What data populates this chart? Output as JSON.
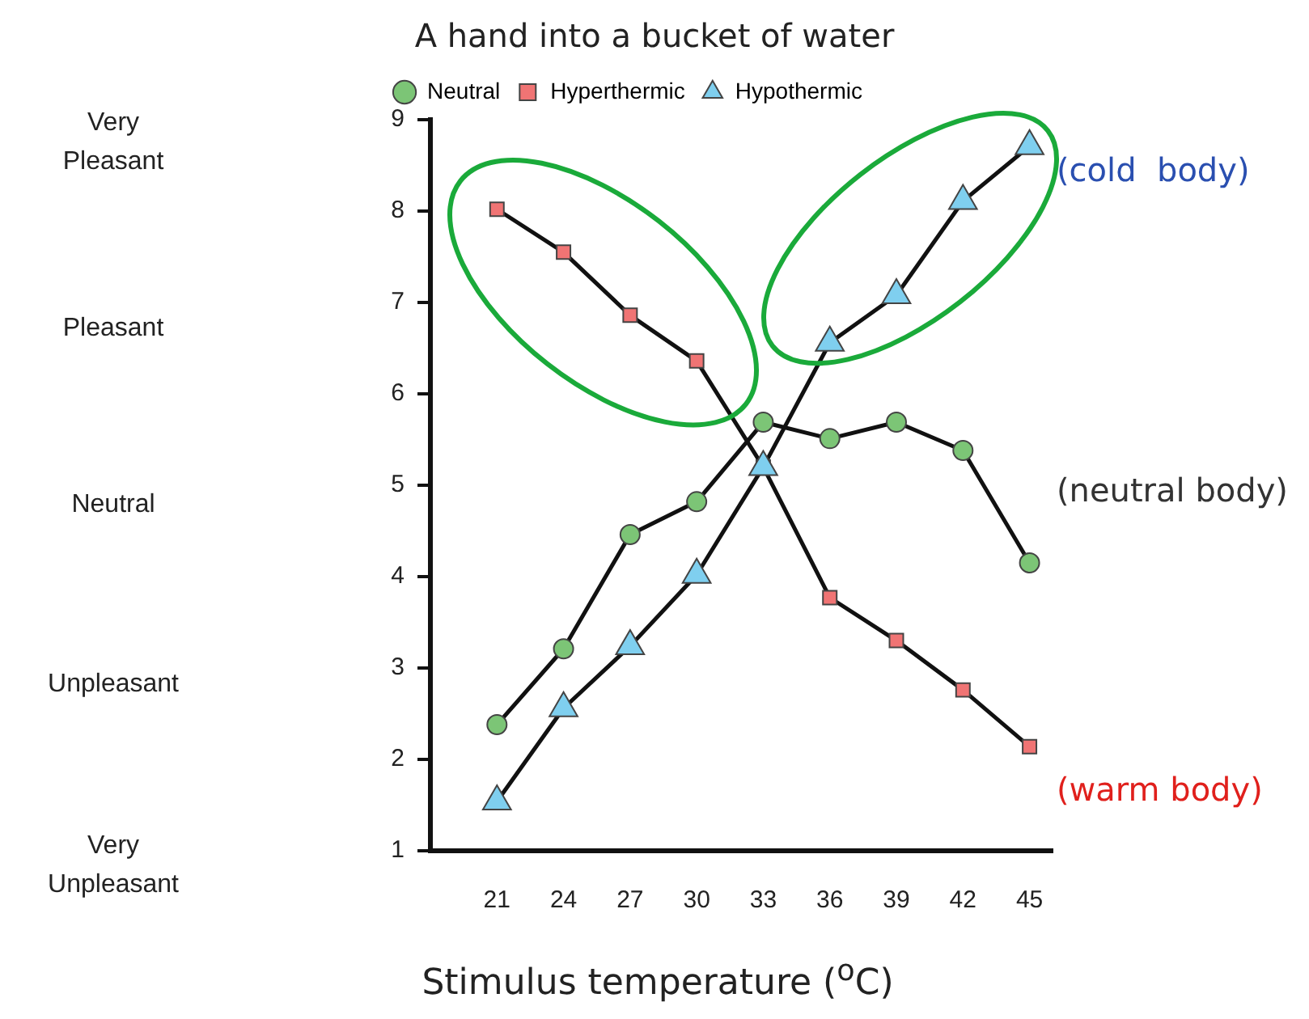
{
  "chart_data": {
    "type": "line",
    "title": "A hand into a bucket of water",
    "xlabel": "Stimulus temperature ($^{o}$C)",
    "x": [
      21,
      24,
      27,
      30,
      33,
      36,
      39,
      42,
      45
    ],
    "series": [
      {
        "name": "Neutral",
        "color": "#7cc576",
        "marker": "circle",
        "values": [
          2.38,
          3.21,
          4.46,
          4.82,
          5.69,
          5.51,
          5.69,
          5.38,
          4.15
        ]
      },
      {
        "name": "Hyperthermic",
        "color": "#f07474",
        "marker": "square",
        "values": [
          8.02,
          7.55,
          6.86,
          6.36,
          5.2,
          3.77,
          3.3,
          2.76,
          2.14
        ]
      },
      {
        "name": "Hypothermic",
        "color": "#7fcfef",
        "marker": "triangle",
        "values": [
          1.54,
          2.56,
          3.24,
          4.02,
          5.2,
          6.56,
          7.08,
          8.11,
          8.71
        ]
      }
    ],
    "xlim": [
      18,
      46
    ],
    "xticks": [
      21,
      24,
      27,
      30,
      33,
      36,
      39,
      42,
      45
    ],
    "ylim": [
      1,
      9
    ],
    "yticks": [
      1,
      2,
      3,
      4,
      5,
      6,
      7,
      8,
      9
    ],
    "annotations": [
      "Very Pleasant",
      "Pleasant",
      "Neutral",
      "Unpleasant",
      "Very Unpleasant",
      "(cold  body)",
      "(neutral body)",
      "(warm body)"
    ],
    "legend": "top",
    "grid": false,
    "line_style": "solid"
  }
}
